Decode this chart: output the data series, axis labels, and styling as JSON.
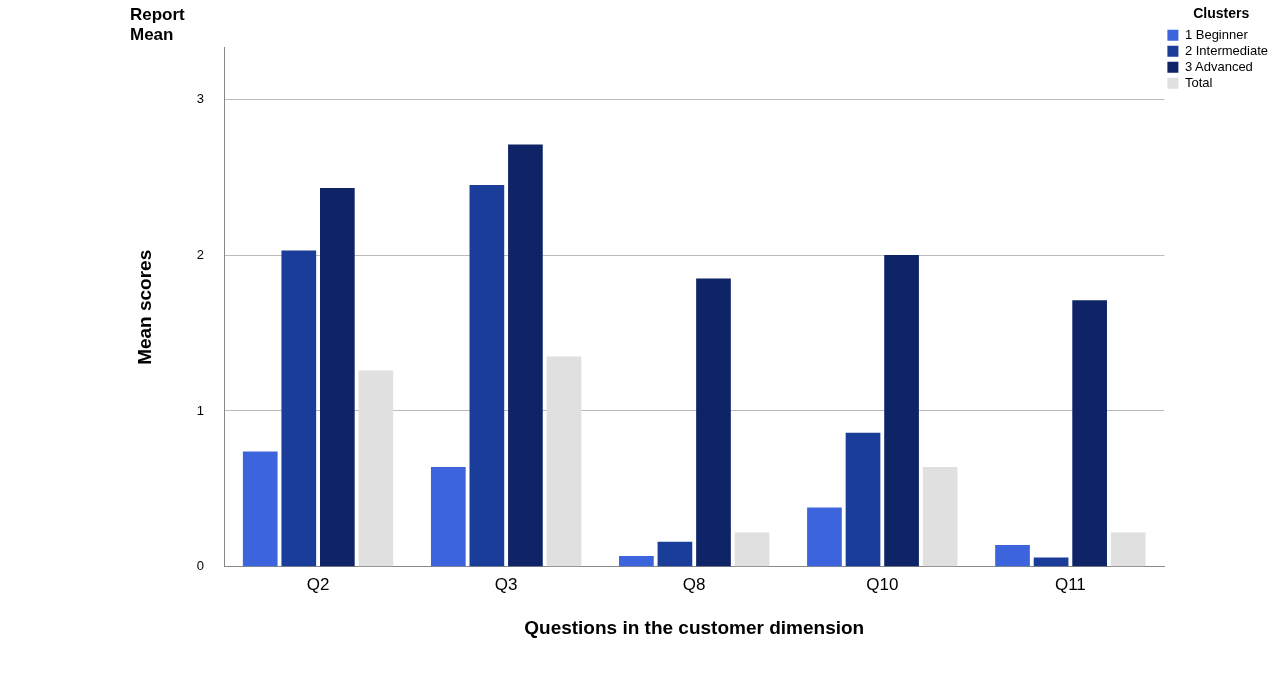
{
  "chart_data": {
    "type": "bar",
    "title": "Report Mean",
    "xlabel": "Questions in the customer dimension",
    "ylabel": "Mean scores",
    "legend_title": "Clusters",
    "categories": [
      "Q2",
      "Q3",
      "Q8",
      "Q10",
      "Q11"
    ],
    "series": [
      {
        "name": "1 Beginner",
        "color": "#3c64dc",
        "values": [
          0.74,
          0.64,
          0.07,
          0.38,
          0.14
        ]
      },
      {
        "name": "2 Intermediate",
        "color": "#1a3d99",
        "values": [
          2.03,
          2.45,
          0.16,
          0.86,
          0.06
        ]
      },
      {
        "name": "3 Advanced",
        "color": "#0f2466",
        "values": [
          2.43,
          2.71,
          1.85,
          2.0,
          1.71
        ]
      },
      {
        "name": "Total",
        "color": "#e0e0e0",
        "values": [
          1.26,
          1.35,
          0.22,
          0.64,
          0.22
        ]
      }
    ],
    "ylim": [
      0,
      3.33
    ],
    "yticks": [
      0,
      1,
      2,
      3
    ],
    "grid": "y",
    "legend": "top right"
  }
}
